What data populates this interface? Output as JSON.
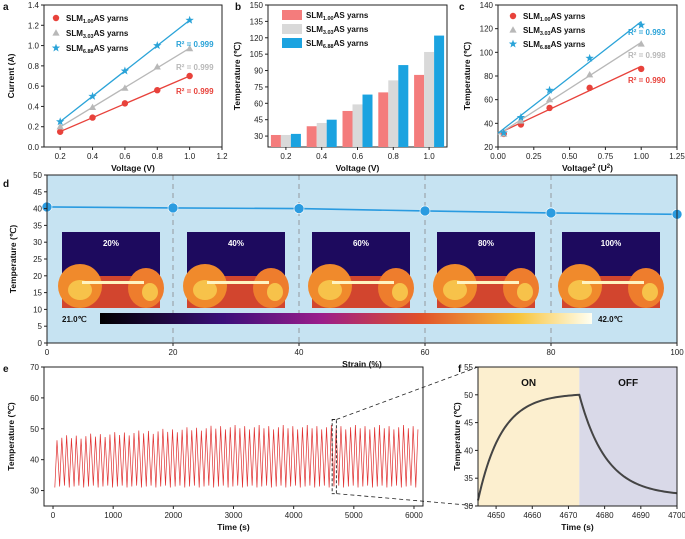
{
  "chart_data": [
    {
      "panel": "a",
      "type": "scatter",
      "xlabel": "Voltage (V)",
      "ylabel": "Current (A)",
      "xlim": [
        0.1,
        1.2
      ],
      "ylim": [
        0.0,
        1.4
      ],
      "xticks": [
        "0.2",
        "0.4",
        "0.6",
        "0.8",
        "1.0",
        "1.2"
      ],
      "yticks": [
        "0.0",
        "0.2",
        "0.4",
        "0.6",
        "0.8",
        "1.0",
        "1.2",
        "1.4"
      ],
      "series": [
        {
          "name": "SLM",
          "sub": "1.00",
          "suffix": "AS yarns",
          "color": "#e8423b",
          "marker": "circle",
          "x": [
            0.2,
            0.4,
            0.6,
            0.8,
            1.0
          ],
          "y": [
            0.15,
            0.29,
            0.43,
            0.56,
            0.7
          ],
          "r2": "R² = 0.999"
        },
        {
          "name": "SLM",
          "sub": "3.03",
          "suffix": "AS yarns",
          "color": "#b8b8b8",
          "marker": "triangle",
          "x": [
            0.2,
            0.4,
            0.6,
            0.8,
            1.0
          ],
          "y": [
            0.2,
            0.39,
            0.58,
            0.79,
            0.97
          ],
          "r2": "R² = 0.999"
        },
        {
          "name": "SLM",
          "sub": "6.88",
          "suffix": "AS yarns",
          "color": "#2aa3d8",
          "marker": "star",
          "x": [
            0.2,
            0.4,
            0.6,
            0.8,
            1.0
          ],
          "y": [
            0.25,
            0.5,
            0.75,
            1.0,
            1.25
          ],
          "r2": "R² = 0.999"
        }
      ]
    },
    {
      "panel": "b",
      "type": "bar",
      "xlabel": "Voltage (V)",
      "ylabel": "Temperature (℃)",
      "ylim": [
        20,
        150
      ],
      "categories": [
        "0.2",
        "0.4",
        "0.6",
        "0.8",
        "1.0"
      ],
      "yticks": [
        "30",
        "45",
        "60",
        "75",
        "90",
        "105",
        "120",
        "135",
        "150"
      ],
      "series": [
        {
          "name": "SLM",
          "sub": "1.00",
          "suffix": "AS yarns",
          "color": "#f47c7c",
          "values": [
            31,
            39,
            53,
            70,
            86
          ]
        },
        {
          "name": "SLM",
          "sub": "3.03",
          "suffix": "AS yarns",
          "color": "#d9d9d9",
          "values": [
            31,
            42,
            59,
            81,
            107
          ]
        },
        {
          "name": "SLM",
          "sub": "6.88",
          "suffix": "AS yarns",
          "color": "#1ba3e0",
          "values": [
            32,
            45,
            68,
            95,
            122
          ]
        }
      ]
    },
    {
      "panel": "c",
      "type": "scatter",
      "xlabel": "Voltage",
      "xlabel_sup": "2",
      "xlabel_unit": "(U",
      "xlabel_unit_sup": "2",
      "xlabel_close": ")",
      "ylabel": "Temperature (℃)",
      "xlim": [
        0.0,
        1.25
      ],
      "ylim": [
        20,
        140
      ],
      "xticks": [
        "0.00",
        "0.25",
        "0.50",
        "0.75",
        "1.00",
        "1.25"
      ],
      "yticks": [
        "20",
        "40",
        "60",
        "80",
        "100",
        "120",
        "140"
      ],
      "series": [
        {
          "name": "SLM",
          "sub": "1.00",
          "suffix": "AS yarns",
          "color": "#e8423b",
          "marker": "circle",
          "x": [
            0.04,
            0.16,
            0.36,
            0.64,
            1.0
          ],
          "y": [
            31,
            39,
            53,
            70,
            86
          ],
          "r2": "R² = 0.990"
        },
        {
          "name": "SLM",
          "sub": "3.03",
          "suffix": "AS yarns",
          "color": "#b8b8b8",
          "marker": "triangle",
          "x": [
            0.04,
            0.16,
            0.36,
            0.64,
            1.0
          ],
          "y": [
            31,
            42,
            60,
            81,
            107
          ],
          "r2": "R² = 0.998"
        },
        {
          "name": "SLM",
          "sub": "6.88",
          "suffix": "AS yarns",
          "color": "#2aa3d8",
          "marker": "star",
          "x": [
            0.04,
            0.16,
            0.36,
            0.64,
            1.0
          ],
          "y": [
            32,
            45,
            68,
            95,
            123
          ],
          "r2": "R² = 0.993"
        }
      ]
    },
    {
      "panel": "d",
      "type": "line",
      "xlabel": "Strain (%)",
      "ylabel": "Temperature (℃)",
      "xlim": [
        0,
        100
      ],
      "ylim": [
        0,
        50
      ],
      "xticks": [
        "0",
        "20",
        "40",
        "60",
        "80",
        "100"
      ],
      "yticks": [
        "0",
        "5",
        "10",
        "15",
        "20",
        "25",
        "30",
        "35",
        "40",
        "45",
        "50"
      ],
      "x": [
        0,
        20,
        40,
        60,
        80,
        100
      ],
      "y": [
        40.5,
        40.2,
        40.0,
        39.3,
        38.7,
        38.3
      ],
      "color": "#2a9be0",
      "thermal_labels": [
        "20%",
        "40%",
        "60%",
        "80%",
        "100%"
      ],
      "colorbar_min": "21.0℃",
      "colorbar_max": "42.0℃"
    },
    {
      "panel": "e",
      "type": "line",
      "xlabel": "Time (s)",
      "ylabel": "Temperature (℃)",
      "xlim": [
        -150,
        6150
      ],
      "ylim": [
        25,
        70
      ],
      "xticks": [
        "0",
        "1000",
        "2000",
        "3000",
        "4000",
        "5000",
        "6000"
      ],
      "yticks": [
        "30",
        "40",
        "50",
        "60",
        "70"
      ],
      "cycles": 76,
      "period_s": 80,
      "t_start": 30,
      "t_end": 6080,
      "low": 31.0,
      "high_start": 47.0,
      "high_end": 50.5,
      "color": "#e03030"
    },
    {
      "panel": "f",
      "type": "line",
      "xlabel": "Time (s)",
      "ylabel": "Temperature (℃)",
      "xlim": [
        4645,
        4700
      ],
      "ylim": [
        30,
        55
      ],
      "xticks": [
        "4650",
        "4660",
        "4670",
        "4680",
        "4690",
        "4700"
      ],
      "yticks": [
        "30",
        "35",
        "40",
        "45",
        "50",
        "55"
      ],
      "on_label": "ON",
      "off_label": "OFF",
      "switch_time": 4673,
      "on_color": "#fcefcf",
      "off_color": "#d9d9e8",
      "heat_start": 31.0,
      "peak": 50.0,
      "cool_end": 31.8,
      "color": "#444444"
    }
  ]
}
